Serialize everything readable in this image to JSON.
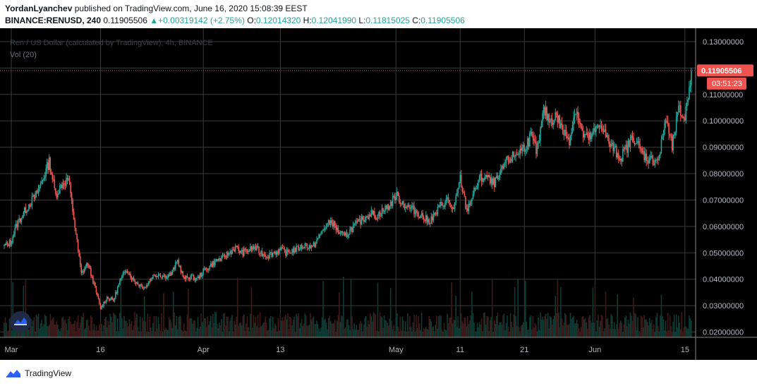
{
  "header": {
    "author": "YordanLyanchev",
    "published": "published on TradingView.com, June 16, 2020 15:08:39 EEST",
    "symbol": "BINANCE:RENUSD, 240",
    "last": "0.11905506",
    "change_arrow": "▲",
    "change": "+0.00319142 (+2.75%)",
    "o_label": "O:",
    "o": "0.12014320",
    "h_label": "H:",
    "h": "0.12041990",
    "l_label": "L:",
    "l": "0.11815025",
    "c_label": "C:",
    "c": "0.11905506"
  },
  "legend": {
    "title": "Ren / US Dollar (calculated by TradingView), 4h, BINANCE",
    "volume": "Vol (20)"
  },
  "footer": {
    "brand": "TradingView",
    "logo_icon": "tradingview-logo-icon"
  },
  "floating_icon": "tradingview-cloud-icon",
  "colors": {
    "up": "#26a69a",
    "down": "#ef5350",
    "bg": "#000000",
    "price_line": "#ef5350"
  },
  "chart_data": {
    "type": "candlestick",
    "interval": "4h",
    "y_axis": {
      "min": 0.018,
      "max": 0.134,
      "ticks": [
        "0.13000000",
        "0.12000000",
        "0.11000000",
        "0.10000000",
        "0.09000000",
        "0.08000000",
        "0.07000000",
        "0.06000000",
        "0.05000000",
        "0.04000000",
        "0.03000000",
        "0.02000000"
      ],
      "tick_values": [
        0.13,
        0.12,
        0.11,
        0.1,
        0.09,
        0.08,
        0.07,
        0.06,
        0.05,
        0.04,
        0.03,
        0.02
      ]
    },
    "x_axis": {
      "start": "2020-03-01",
      "end": "2020-06-16",
      "ticks": [
        {
          "label": "Mar",
          "date": "2020-03-01"
        },
        {
          "label": "16",
          "date": "2020-03-16"
        },
        {
          "label": "Apr",
          "date": "2020-04-01"
        },
        {
          "label": "13",
          "date": "2020-04-13"
        },
        {
          "label": "May",
          "date": "2020-05-01"
        },
        {
          "label": "11",
          "date": "2020-05-11"
        },
        {
          "label": "21",
          "date": "2020-05-21"
        },
        {
          "label": "Jun",
          "date": "2020-06-01"
        },
        {
          "label": "15",
          "date": "2020-06-15"
        }
      ]
    },
    "current_price": {
      "value": 0.11905506,
      "label": "0.11905506",
      "countdown": "03:51:23"
    },
    "close_path": [
      {
        "date": "2020-03-01",
        "close": 0.0525
      },
      {
        "date": "2020-03-02",
        "close": 0.054
      },
      {
        "date": "2020-03-03",
        "close": 0.061
      },
      {
        "date": "2020-03-04",
        "close": 0.065
      },
      {
        "date": "2020-03-05",
        "close": 0.069
      },
      {
        "date": "2020-03-06",
        "close": 0.072
      },
      {
        "date": "2020-03-07",
        "close": 0.078
      },
      {
        "date": "2020-03-08",
        "close": 0.0845
      },
      {
        "date": "2020-03-09",
        "close": 0.072
      },
      {
        "date": "2020-03-10",
        "close": 0.076
      },
      {
        "date": "2020-03-11",
        "close": 0.078
      },
      {
        "date": "2020-03-12",
        "close": 0.06
      },
      {
        "date": "2020-03-13",
        "close": 0.042
      },
      {
        "date": "2020-03-14",
        "close": 0.046
      },
      {
        "date": "2020-03-15",
        "close": 0.038
      },
      {
        "date": "2020-03-16",
        "close": 0.029
      },
      {
        "date": "2020-03-17",
        "close": 0.033
      },
      {
        "date": "2020-03-18",
        "close": 0.032
      },
      {
        "date": "2020-03-19",
        "close": 0.039
      },
      {
        "date": "2020-03-20",
        "close": 0.044
      },
      {
        "date": "2020-03-21",
        "close": 0.04
      },
      {
        "date": "2020-03-22",
        "close": 0.038
      },
      {
        "date": "2020-03-23",
        "close": 0.037
      },
      {
        "date": "2020-03-24",
        "close": 0.041
      },
      {
        "date": "2020-03-25",
        "close": 0.042
      },
      {
        "date": "2020-03-26",
        "close": 0.041
      },
      {
        "date": "2020-03-27",
        "close": 0.042
      },
      {
        "date": "2020-03-28",
        "close": 0.047
      },
      {
        "date": "2020-03-29",
        "close": 0.04
      },
      {
        "date": "2020-03-30",
        "close": 0.041
      },
      {
        "date": "2020-03-31",
        "close": 0.04
      },
      {
        "date": "2020-04-01",
        "close": 0.043
      },
      {
        "date": "2020-04-02",
        "close": 0.045
      },
      {
        "date": "2020-04-03",
        "close": 0.047
      },
      {
        "date": "2020-04-04",
        "close": 0.048
      },
      {
        "date": "2020-04-05",
        "close": 0.05
      },
      {
        "date": "2020-04-06",
        "close": 0.052
      },
      {
        "date": "2020-04-07",
        "close": 0.05
      },
      {
        "date": "2020-04-08",
        "close": 0.051
      },
      {
        "date": "2020-04-09",
        "close": 0.052
      },
      {
        "date": "2020-04-10",
        "close": 0.05
      },
      {
        "date": "2020-04-11",
        "close": 0.049
      },
      {
        "date": "2020-04-12",
        "close": 0.05
      },
      {
        "date": "2020-04-13",
        "close": 0.051
      },
      {
        "date": "2020-04-14",
        "close": 0.05
      },
      {
        "date": "2020-04-15",
        "close": 0.051
      },
      {
        "date": "2020-04-16",
        "close": 0.052
      },
      {
        "date": "2020-04-17",
        "close": 0.053
      },
      {
        "date": "2020-04-18",
        "close": 0.052
      },
      {
        "date": "2020-04-19",
        "close": 0.056
      },
      {
        "date": "2020-04-20",
        "close": 0.06
      },
      {
        "date": "2020-04-21",
        "close": 0.062
      },
      {
        "date": "2020-04-22",
        "close": 0.058
      },
      {
        "date": "2020-04-23",
        "close": 0.056
      },
      {
        "date": "2020-04-24",
        "close": 0.059
      },
      {
        "date": "2020-04-25",
        "close": 0.061
      },
      {
        "date": "2020-04-26",
        "close": 0.063
      },
      {
        "date": "2020-04-27",
        "close": 0.065
      },
      {
        "date": "2020-04-28",
        "close": 0.064
      },
      {
        "date": "2020-04-29",
        "close": 0.066
      },
      {
        "date": "2020-04-30",
        "close": 0.068
      },
      {
        "date": "2020-05-01",
        "close": 0.072
      },
      {
        "date": "2020-05-02",
        "close": 0.069
      },
      {
        "date": "2020-05-03",
        "close": 0.067
      },
      {
        "date": "2020-05-04",
        "close": 0.066
      },
      {
        "date": "2020-05-05",
        "close": 0.064
      },
      {
        "date": "2020-05-06",
        "close": 0.062
      },
      {
        "date": "2020-05-07",
        "close": 0.064
      },
      {
        "date": "2020-05-08",
        "close": 0.068
      },
      {
        "date": "2020-05-09",
        "close": 0.07
      },
      {
        "date": "2020-05-10",
        "close": 0.066
      },
      {
        "date": "2020-05-11",
        "close": 0.078
      },
      {
        "date": "2020-05-12",
        "close": 0.066
      },
      {
        "date": "2020-05-13",
        "close": 0.072
      },
      {
        "date": "2020-05-14",
        "close": 0.078
      },
      {
        "date": "2020-05-15",
        "close": 0.079
      },
      {
        "date": "2020-05-16",
        "close": 0.076
      },
      {
        "date": "2020-05-17",
        "close": 0.078
      },
      {
        "date": "2020-05-18",
        "close": 0.084
      },
      {
        "date": "2020-05-19",
        "close": 0.086
      },
      {
        "date": "2020-05-20",
        "close": 0.088
      },
      {
        "date": "2020-05-21",
        "close": 0.09
      },
      {
        "date": "2020-05-22",
        "close": 0.094
      },
      {
        "date": "2020-05-23",
        "close": 0.088
      },
      {
        "date": "2020-05-24",
        "close": 0.104
      },
      {
        "date": "2020-05-25",
        "close": 0.1
      },
      {
        "date": "2020-05-26",
        "close": 0.102
      },
      {
        "date": "2020-05-27",
        "close": 0.096
      },
      {
        "date": "2020-05-28",
        "close": 0.093
      },
      {
        "date": "2020-05-29",
        "close": 0.105
      },
      {
        "date": "2020-05-30",
        "close": 0.095
      },
      {
        "date": "2020-05-31",
        "close": 0.093
      },
      {
        "date": "2020-06-01",
        "close": 0.096
      },
      {
        "date": "2020-06-02",
        "close": 0.099
      },
      {
        "date": "2020-06-03",
        "close": 0.092
      },
      {
        "date": "2020-06-04",
        "close": 0.089
      },
      {
        "date": "2020-06-05",
        "close": 0.086
      },
      {
        "date": "2020-06-06",
        "close": 0.09
      },
      {
        "date": "2020-06-07",
        "close": 0.094
      },
      {
        "date": "2020-06-08",
        "close": 0.089
      },
      {
        "date": "2020-06-09",
        "close": 0.086
      },
      {
        "date": "2020-06-10",
        "close": 0.085
      },
      {
        "date": "2020-06-11",
        "close": 0.086
      },
      {
        "date": "2020-06-12",
        "close": 0.101
      },
      {
        "date": "2020-06-13",
        "close": 0.09
      },
      {
        "date": "2020-06-14",
        "close": 0.104
      },
      {
        "date": "2020-06-15",
        "close": 0.101
      },
      {
        "date": "2020-06-16",
        "close": 0.119
      }
    ]
  }
}
